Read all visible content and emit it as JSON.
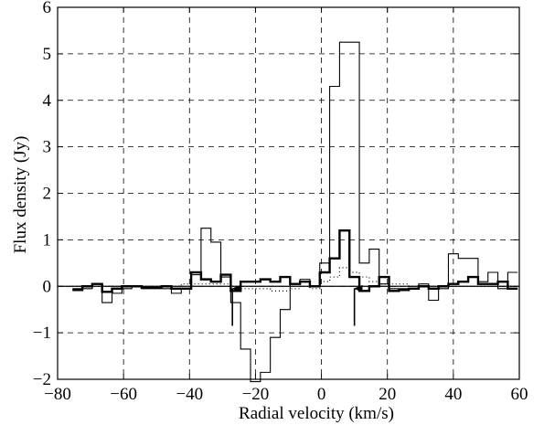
{
  "chart_data": {
    "type": "line",
    "title": "",
    "xlabel": "Radial velocity (km/s)",
    "ylabel": "Flux density (Jy)",
    "xlim": [
      -80,
      60
    ],
    "ylim": [
      -2,
      6
    ],
    "xticks": [
      -80,
      -60,
      -40,
      -20,
      0,
      20,
      40,
      60
    ],
    "yticks": [
      -2,
      -1,
      0,
      1,
      2,
      3,
      4,
      5,
      6
    ],
    "xtick_labels": [
      "−80",
      "−60",
      "−40",
      "−20",
      "0",
      "20",
      "40",
      "60"
    ],
    "ytick_labels": [
      "−2",
      "−1",
      "0",
      "1",
      "2",
      "3",
      "4",
      "5",
      "6"
    ],
    "grid": true,
    "grid_style": "dashed",
    "baseline": 0,
    "series": [
      {
        "style": "thin-solid-step",
        "color": "#000000",
        "x": [
          -74,
          -71,
          -68,
          -65,
          -62,
          -59,
          -56,
          -53,
          -50,
          -47,
          -44,
          -41,
          -38,
          -35,
          -32,
          -29,
          -26,
          -23,
          -20,
          -17,
          -14,
          -11,
          -8,
          -5,
          -2,
          1,
          4,
          7,
          10,
          13,
          16,
          19,
          22,
          25,
          28,
          31,
          34,
          37,
          40,
          43,
          46,
          49,
          52,
          55,
          58
        ],
        "y": [
          -0.05,
          -0.05,
          0.05,
          -0.35,
          -0.15,
          -0.05,
          0.0,
          -0.05,
          -0.05,
          -0.05,
          -0.15,
          -0.05,
          0.25,
          1.25,
          0.95,
          0.2,
          -0.35,
          -1.35,
          -2.05,
          -1.85,
          -1.1,
          -0.5,
          0.05,
          0.15,
          0.0,
          0.5,
          4.3,
          5.25,
          5.25,
          0.5,
          0.8,
          0.05,
          -0.05,
          -0.05,
          -0.05,
          0.05,
          -0.3,
          -0.05,
          0.7,
          0.6,
          0.6,
          0.1,
          0.3,
          -0.05,
          0.3
        ]
      },
      {
        "style": "thick-solid-step",
        "color": "#000000",
        "x": [
          -74,
          -71,
          -68,
          -65,
          -62,
          -59,
          -56,
          -53,
          -50,
          -47,
          -44,
          -41,
          -38,
          -35,
          -32,
          -29,
          -26,
          -23,
          -20,
          -17,
          -14,
          -11,
          -8,
          -5,
          -2,
          1,
          4,
          7,
          10,
          13,
          16,
          19,
          22,
          25,
          28,
          31,
          34,
          37,
          40,
          43,
          46,
          49,
          52,
          55,
          58
        ],
        "y": [
          -0.08,
          0.0,
          0.05,
          -0.12,
          -0.05,
          0.0,
          0.0,
          -0.03,
          -0.03,
          0.0,
          -0.05,
          -0.05,
          0.3,
          0.15,
          0.1,
          0.25,
          -0.1,
          0.1,
          0.1,
          0.15,
          0.1,
          0.2,
          0.05,
          0.1,
          0.0,
          0.3,
          0.6,
          1.2,
          0.2,
          -0.1,
          0.0,
          0.2,
          -0.1,
          -0.08,
          -0.05,
          0.0,
          -0.05,
          0.0,
          0.05,
          0.1,
          0.2,
          0.05,
          0.05,
          0.1,
          -0.05
        ]
      },
      {
        "style": "dotted-step",
        "color": "#000000",
        "x": [
          -74,
          -71,
          -68,
          -65,
          -62,
          -59,
          -56,
          -53,
          -50,
          -47,
          -44,
          -41,
          -38,
          -35,
          -32,
          -29,
          -26,
          -23,
          -20,
          -17,
          -14,
          -11,
          -8,
          -5,
          -2,
          1,
          4,
          7,
          10,
          13,
          16,
          19,
          22,
          25,
          28,
          31,
          34,
          37,
          40,
          43,
          46,
          49,
          52,
          55,
          58
        ],
        "y": [
          0.0,
          0.0,
          0.0,
          0.0,
          0.0,
          0.0,
          0.0,
          0.0,
          0.0,
          0.0,
          0.0,
          0.05,
          0.05,
          0.05,
          0.05,
          0.05,
          0.0,
          -0.05,
          -0.05,
          -0.05,
          -0.1,
          -0.1,
          -0.05,
          0.0,
          -0.05,
          0.1,
          0.2,
          0.4,
          0.3,
          0.2,
          0.1,
          0.05,
          0.05,
          0.05,
          0.0,
          0.0,
          0.0,
          0.0,
          0.0,
          0.0,
          0.0,
          0.0,
          0.0,
          0.0,
          0.0
        ]
      }
    ],
    "annotations": [
      {
        "type": "up-arrow",
        "x": -27,
        "y_tail": -0.85,
        "y_head": -0.05
      },
      {
        "type": "up-arrow",
        "x": 10,
        "y_tail": -0.85,
        "y_head": -0.05
      }
    ]
  }
}
